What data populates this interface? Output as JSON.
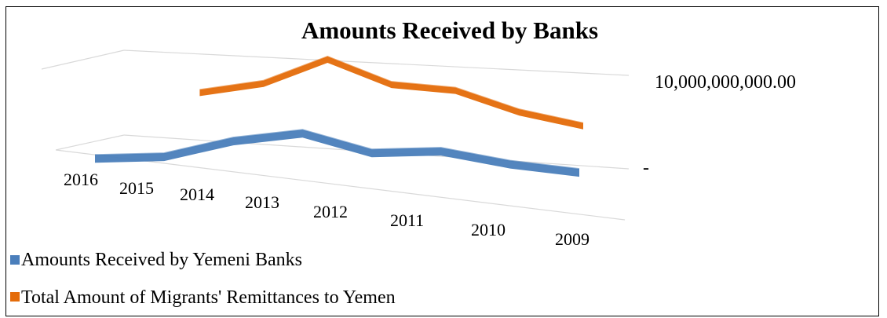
{
  "chart_data": {
    "type": "line",
    "title": "Amounts Received by Banks",
    "categories": [
      "2016",
      "2015",
      "2014",
      "2013",
      "2012",
      "2011",
      "2010",
      "2009"
    ],
    "y_tick_labels": [
      "10,000,000,000.00",
      "-"
    ],
    "ylim": [
      0,
      10000000000
    ],
    "grid": true,
    "legend_position": "bottom-left",
    "series": [
      {
        "name": "Amounts Received by Yemeni Banks",
        "color": "#4a7ebb",
        "values": [
          2400000000,
          3000000000,
          5700000000,
          7200000000,
          4600000000,
          5200000000,
          3600000000,
          2700000000
        ]
      },
      {
        "name": "Total Amount of Migrants' Remittances to Yemen",
        "color": "#e46c0a",
        "values": null,
        "values_visible": [
          null,
          5100000000,
          6700000000,
          10000000000,
          7700000000,
          7600000000,
          5700000000,
          4700000000
        ]
      }
    ]
  }
}
